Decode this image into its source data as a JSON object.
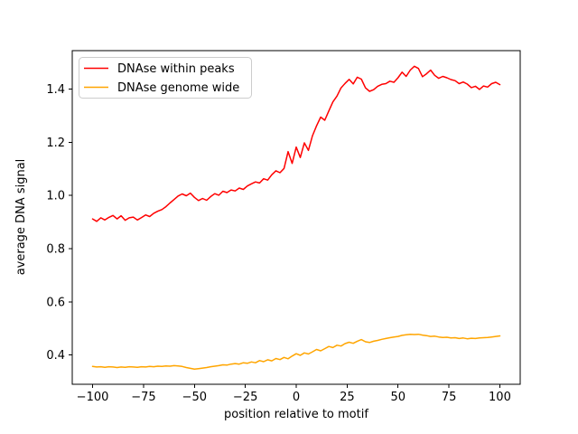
{
  "chart_data": {
    "type": "line",
    "title": "",
    "xlabel": "position relative to motif",
    "ylabel": "average DNA signal",
    "xlim": [
      -110,
      110
    ],
    "ylim": [
      0.29,
      1.545
    ],
    "grid": false,
    "legend_position": "upper left",
    "x_ticks": [
      {
        "value": -100,
        "label": "−100"
      },
      {
        "value": -75,
        "label": "−75"
      },
      {
        "value": -50,
        "label": "−50"
      },
      {
        "value": -25,
        "label": "−25"
      },
      {
        "value": 0,
        "label": "0"
      },
      {
        "value": 25,
        "label": "25"
      },
      {
        "value": 50,
        "label": "50"
      },
      {
        "value": 75,
        "label": "75"
      },
      {
        "value": 100,
        "label": "100"
      }
    ],
    "y_ticks": [
      {
        "value": 0.4,
        "label": "0.4"
      },
      {
        "value": 0.6,
        "label": "0.6"
      },
      {
        "value": 0.8,
        "label": "0.8"
      },
      {
        "value": 1.0,
        "label": "1.0"
      },
      {
        "value": 1.2,
        "label": "1.2"
      },
      {
        "value": 1.4,
        "label": "1.4"
      }
    ],
    "x": [
      -100,
      -98,
      -96,
      -94,
      -92,
      -90,
      -88,
      -86,
      -84,
      -82,
      -80,
      -78,
      -76,
      -74,
      -72,
      -70,
      -68,
      -66,
      -64,
      -62,
      -60,
      -58,
      -56,
      -54,
      -52,
      -50,
      -48,
      -46,
      -44,
      -42,
      -40,
      -38,
      -36,
      -34,
      -32,
      -30,
      -28,
      -26,
      -24,
      -22,
      -20,
      -18,
      -16,
      -14,
      -12,
      -10,
      -8,
      -6,
      -4,
      -2,
      0,
      2,
      4,
      6,
      8,
      10,
      12,
      14,
      16,
      18,
      20,
      22,
      24,
      26,
      28,
      30,
      32,
      34,
      36,
      38,
      40,
      42,
      44,
      46,
      48,
      50,
      52,
      54,
      56,
      58,
      60,
      62,
      64,
      66,
      68,
      70,
      72,
      74,
      76,
      78,
      80,
      82,
      84,
      86,
      88,
      90,
      92,
      94,
      96,
      98,
      100
    ],
    "series": [
      {
        "name": "DNAse within peaks",
        "color": "#ff0000",
        "values": [
          0.912,
          0.903,
          0.916,
          0.908,
          0.918,
          0.925,
          0.912,
          0.924,
          0.907,
          0.916,
          0.919,
          0.908,
          0.917,
          0.927,
          0.921,
          0.933,
          0.941,
          0.947,
          0.958,
          0.972,
          0.985,
          0.998,
          1.006,
          0.999,
          1.009,
          0.993,
          0.981,
          0.989,
          0.982,
          0.996,
          1.007,
          1.001,
          1.016,
          1.011,
          1.021,
          1.017,
          1.028,
          1.023,
          1.036,
          1.044,
          1.051,
          1.047,
          1.063,
          1.058,
          1.078,
          1.093,
          1.086,
          1.102,
          1.165,
          1.121,
          1.182,
          1.143,
          1.198,
          1.17,
          1.225,
          1.262,
          1.295,
          1.283,
          1.318,
          1.352,
          1.374,
          1.405,
          1.422,
          1.437,
          1.42,
          1.445,
          1.438,
          1.405,
          1.392,
          1.398,
          1.411,
          1.418,
          1.421,
          1.43,
          1.426,
          1.443,
          1.464,
          1.448,
          1.472,
          1.486,
          1.478,
          1.447,
          1.458,
          1.472,
          1.452,
          1.441,
          1.448,
          1.443,
          1.436,
          1.432,
          1.421,
          1.427,
          1.419,
          1.406,
          1.411,
          1.399,
          1.412,
          1.408,
          1.421,
          1.426,
          1.417
        ]
      },
      {
        "name": "DNAse genome wide",
        "color": "#ffa500",
        "values": [
          0.357,
          0.355,
          0.356,
          0.354,
          0.356,
          0.355,
          0.353,
          0.355,
          0.354,
          0.356,
          0.355,
          0.354,
          0.356,
          0.355,
          0.357,
          0.356,
          0.358,
          0.357,
          0.359,
          0.358,
          0.36,
          0.359,
          0.357,
          0.353,
          0.35,
          0.347,
          0.349,
          0.351,
          0.353,
          0.356,
          0.358,
          0.36,
          0.363,
          0.362,
          0.366,
          0.368,
          0.366,
          0.371,
          0.369,
          0.374,
          0.371,
          0.379,
          0.375,
          0.382,
          0.378,
          0.387,
          0.383,
          0.391,
          0.386,
          0.396,
          0.405,
          0.399,
          0.408,
          0.404,
          0.412,
          0.421,
          0.416,
          0.424,
          0.432,
          0.428,
          0.437,
          0.434,
          0.443,
          0.448,
          0.444,
          0.452,
          0.458,
          0.45,
          0.447,
          0.452,
          0.455,
          0.459,
          0.462,
          0.465,
          0.468,
          0.47,
          0.474,
          0.476,
          0.478,
          0.477,
          0.478,
          0.475,
          0.473,
          0.47,
          0.471,
          0.468,
          0.466,
          0.467,
          0.464,
          0.465,
          0.462,
          0.464,
          0.461,
          0.463,
          0.462,
          0.464,
          0.465,
          0.466,
          0.468,
          0.47,
          0.472
        ]
      }
    ]
  }
}
